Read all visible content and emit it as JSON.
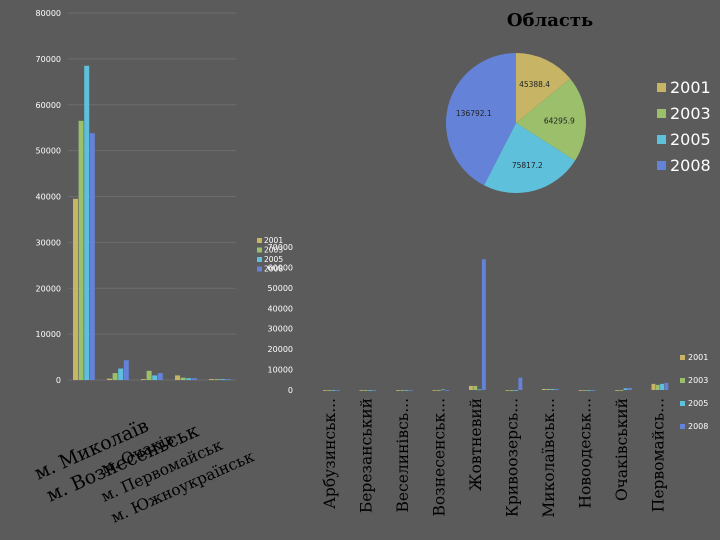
{
  "colors": {
    "2001": "#c7b464",
    "2003": "#9bbf6b",
    "2005": "#5fc0dc",
    "2008": "#6483d8",
    "grid": "#6c6c6c"
  },
  "chart_data": [
    {
      "type": "bar",
      "series": [
        {
          "name": "2001",
          "values": [
            39500,
            300,
            200,
            1000,
            200
          ]
        },
        {
          "name": "2003",
          "values": [
            56500,
            1500,
            2000,
            500,
            200
          ]
        },
        {
          "name": "2005",
          "values": [
            68500,
            2500,
            1000,
            400,
            200
          ]
        },
        {
          "name": "2008",
          "values": [
            53800,
            4300,
            1500,
            400,
            200
          ]
        }
      ],
      "categories": [
        "м. Миколаїв",
        "м. Вознесеньськ",
        "м. Очаків",
        "м. Первомайськ",
        "м. Южноукраїнськ"
      ],
      "ylim": [
        0,
        80000
      ],
      "yticks": [
        "0",
        "10000",
        "20000",
        "30000",
        "40000",
        "50000",
        "60000",
        "70000",
        "80000"
      ],
      "legend": [
        "2001",
        "2003",
        "2005",
        "2008"
      ],
      "grid": true,
      "legend_position": "right"
    },
    {
      "type": "pie",
      "title": "Область",
      "series": [
        {
          "name": "2001",
          "value": 45388.4
        },
        {
          "name": "2003",
          "value": 64295.9
        },
        {
          "name": "2005",
          "value": 75817.2
        },
        {
          "name": "2008",
          "value": 136792.1
        }
      ],
      "value_labels": [
        "45388.4",
        "64295.9",
        "75817.2",
        "136792.1"
      ],
      "legend": [
        "2001",
        "2003",
        "2005",
        "2008"
      ],
      "legend_position": "right"
    },
    {
      "type": "bar",
      "series": [
        {
          "name": "2001",
          "values": [
            0,
            0,
            0,
            0,
            2000,
            0,
            500,
            0,
            0,
            3000
          ]
        },
        {
          "name": "2003",
          "values": [
            0,
            0,
            0,
            0,
            2000,
            0,
            500,
            0,
            0,
            2500
          ]
        },
        {
          "name": "2005",
          "values": [
            0,
            0,
            0,
            300,
            300,
            0,
            500,
            0,
            800,
            3000
          ]
        },
        {
          "name": "2008",
          "values": [
            0,
            0,
            0,
            0,
            64000,
            6000,
            500,
            0,
            1000,
            3500
          ]
        }
      ],
      "categories": [
        "Арбузинськ...",
        "Березанський",
        "Веселинівсь...",
        "Вознесенськ...",
        "Жовтневий",
        "Кривоозерсь...",
        "Миколаївськ...",
        "Новоодеськ...",
        "Очаківський",
        "Первомайсь..."
      ],
      "ylim": [
        0,
        70000
      ],
      "yticks": [
        "0",
        "10000",
        "20000",
        "30000",
        "40000",
        "50000",
        "60000",
        "70000"
      ],
      "legend": [
        "2001",
        "2003",
        "2005",
        "2008"
      ],
      "grid": false,
      "legend_position": "right"
    }
  ]
}
